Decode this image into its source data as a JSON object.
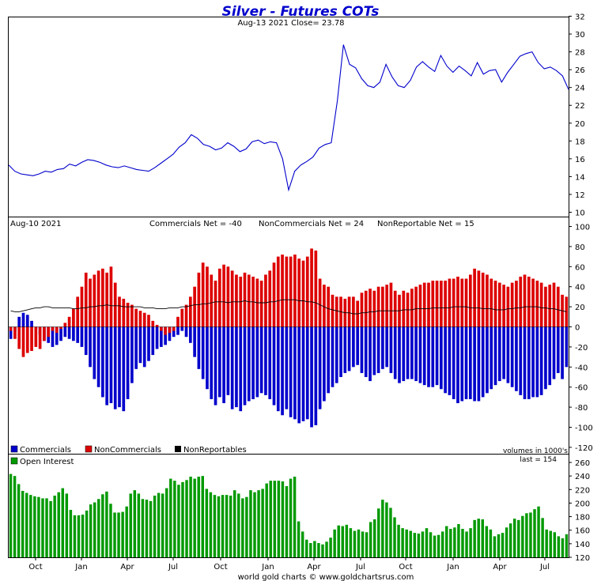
{
  "chart_data": [
    {
      "panel": "price",
      "type": "line",
      "title": "Silver - Futures COTs",
      "subtitle": "Aug-13  2021   Close= 23.78",
      "ylim": [
        10,
        32
      ],
      "yticks": [
        10,
        12,
        14,
        16,
        18,
        20,
        22,
        24,
        26,
        28,
        30,
        32
      ],
      "series": [
        {
          "name": "Silver price",
          "color": "#0000cc",
          "values": [
            15.3,
            14.6,
            14.3,
            14.2,
            14.1,
            14.3,
            14.6,
            14.5,
            14.8,
            14.9,
            15.4,
            15.2,
            15.6,
            15.9,
            15.8,
            15.6,
            15.3,
            15.1,
            15.0,
            15.2,
            15.0,
            14.8,
            14.7,
            14.6,
            15.0,
            15.5,
            16.0,
            16.5,
            17.3,
            17.8,
            18.7,
            18.3,
            17.6,
            17.4,
            17.0,
            17.2,
            17.8,
            17.4,
            16.8,
            17.1,
            17.9,
            18.1,
            17.7,
            17.9,
            17.8,
            16.0,
            12.5,
            14.6,
            15.3,
            15.7,
            16.2,
            17.2,
            17.6,
            17.8,
            22.5,
            28.8,
            26.6,
            26.2,
            25.0,
            24.2,
            24.0,
            24.6,
            26.6,
            25.2,
            24.2,
            24.0,
            24.8,
            26.3,
            26.9,
            26.3,
            25.8,
            27.6,
            26.4,
            25.7,
            26.4,
            25.9,
            25.3,
            26.8,
            25.5,
            25.9,
            26.0,
            24.6,
            25.7,
            26.6,
            27.5,
            27.8,
            28.0,
            26.8,
            26.1,
            26.3,
            25.9,
            25.3,
            23.78
          ]
        }
      ]
    },
    {
      "panel": "cot",
      "type": "bar",
      "date_label": "Aug-10  2021",
      "ylim": [
        -120,
        100
      ],
      "yticks": [
        -120,
        -100,
        -80,
        -60,
        -40,
        -20,
        0,
        20,
        40,
        60,
        80,
        100
      ],
      "series": [
        {
          "name": "Commercials",
          "color": "#0000cc",
          "values": [
            -12,
            -4,
            10,
            14,
            12,
            6,
            -2,
            -8,
            -14,
            -16,
            -20,
            -18,
            -14,
            -10,
            -12,
            -14,
            -16,
            -20,
            -28,
            -40,
            -52,
            -60,
            -70,
            -78,
            -76,
            -82,
            -80,
            -84,
            -72,
            -56,
            -42,
            -36,
            -40,
            -34,
            -28,
            -22,
            -20,
            -18,
            -14,
            -10,
            -8,
            -4,
            -10,
            -16,
            -30,
            -42,
            -52,
            -62,
            -72,
            -78,
            -70,
            -76,
            -68,
            -82,
            -80,
            -84,
            -78,
            -74,
            -72,
            -70,
            -66,
            -68,
            -72,
            -78,
            -84,
            -88,
            -82,
            -90,
            -92,
            -96,
            -94,
            -92,
            -100,
            -98,
            -82,
            -74,
            -66,
            -60,
            -56,
            -50,
            -46,
            -44,
            -40,
            -38,
            -46,
            -50,
            -54,
            -48,
            -46,
            -42,
            -40,
            -46,
            -52,
            -56,
            -54,
            -52,
            -52,
            -54,
            -56,
            -58,
            -60,
            -60,
            -58,
            -62,
            -66,
            -68,
            -72,
            -76,
            -74,
            -72,
            -72,
            -74,
            -74,
            -70,
            -66,
            -62,
            -58,
            -54,
            -52,
            -56,
            -60,
            -64,
            -68,
            -72,
            -72,
            -70,
            -70,
            -68,
            -62,
            -58,
            -52,
            -46,
            -52,
            -40
          ],
          "note": "values in thousands of contracts"
        },
        {
          "name": "NonCommercials",
          "color": "#dd0000",
          "values": [
            -4,
            -12,
            -22,
            -30,
            -26,
            -24,
            -20,
            -22,
            -14,
            -10,
            -4,
            -6,
            -2,
            4,
            10,
            18,
            30,
            40,
            54,
            48,
            52,
            56,
            58,
            54,
            60,
            44,
            30,
            28,
            24,
            22,
            18,
            16,
            14,
            12,
            6,
            2,
            -4,
            -8,
            -6,
            -4,
            10,
            18,
            22,
            30,
            40,
            54,
            64,
            60,
            52,
            46,
            58,
            62,
            60,
            56,
            52,
            50,
            54,
            52,
            50,
            48,
            46,
            52,
            56,
            64,
            70,
            72,
            70,
            70,
            72,
            68,
            66,
            70,
            78,
            76,
            48,
            42,
            40,
            32,
            30,
            30,
            28,
            30,
            30,
            26,
            34,
            36,
            38,
            36,
            40,
            40,
            42,
            44,
            36,
            32,
            36,
            34,
            38,
            40,
            42,
            44,
            44,
            46,
            46,
            46,
            46,
            48,
            48,
            50,
            48,
            48,
            52,
            58,
            56,
            54,
            52,
            48,
            46,
            44,
            42,
            40,
            44,
            46,
            50,
            52,
            50,
            48,
            46,
            44,
            40,
            42,
            44,
            40,
            32,
            30,
            24
          ],
          "note": "values in thousands of contracts"
        },
        {
          "name": "NonReportables",
          "color": "#000000",
          "values": [
            16,
            15,
            15,
            16,
            17,
            18,
            19,
            19,
            20,
            20,
            19,
            19,
            19,
            19,
            19,
            18,
            18,
            19,
            19,
            20,
            20,
            21,
            21,
            22,
            21,
            21,
            21,
            20,
            20,
            20,
            20,
            20,
            19,
            19,
            19,
            18,
            18,
            18,
            19,
            19,
            19,
            20,
            20,
            21,
            22,
            22,
            23,
            23,
            24,
            25,
            25,
            25,
            24,
            25,
            25,
            25,
            26,
            25,
            25,
            24,
            24,
            24,
            25,
            25,
            26,
            27,
            27,
            27,
            27,
            26,
            26,
            25,
            25,
            24,
            22,
            20,
            18,
            17,
            16,
            15,
            14,
            14,
            13,
            13,
            14,
            14,
            15,
            15,
            16,
            16,
            16,
            16,
            16,
            16,
            17,
            17,
            17,
            18,
            18,
            18,
            18,
            19,
            19,
            19,
            19,
            19,
            20,
            20,
            20,
            20,
            19,
            19,
            19,
            18,
            18,
            18,
            17,
            17,
            17,
            18,
            18,
            19,
            19,
            20,
            20,
            20,
            20,
            19,
            19,
            18,
            18,
            17,
            16,
            15
          ],
          "note": "values in thousands of contracts"
        }
      ],
      "header_stats": {
        "commercials": "Commercials Net = -40",
        "noncommercials": "NonCommercials Net = 24",
        "nonreportable": "NonReportable Net = 15"
      }
    },
    {
      "panel": "open_interest",
      "type": "bar",
      "ylim": [
        120,
        260
      ],
      "yticks": [
        120,
        140,
        160,
        180,
        200,
        220,
        240,
        260
      ],
      "volumes_note": "volumes in 1000's",
      "last_label": "last = 154",
      "series": [
        {
          "name": "Open Interest",
          "color": "#009900",
          "values": [
            243,
            240,
            228,
            218,
            215,
            212,
            210,
            209,
            207,
            207,
            203,
            211,
            216,
            222,
            214,
            190,
            182,
            182,
            183,
            189,
            198,
            201,
            206,
            213,
            217,
            199,
            186,
            186,
            187,
            195,
            214,
            219,
            214,
            206,
            205,
            203,
            211,
            215,
            214,
            222,
            236,
            233,
            227,
            231,
            234,
            239,
            236,
            239,
            240,
            221,
            216,
            212,
            210,
            212,
            212,
            211,
            219,
            214,
            207,
            209,
            219,
            216,
            219,
            221,
            229,
            233,
            233,
            233,
            232,
            225,
            236,
            239,
            173,
            158,
            146,
            141,
            144,
            141,
            139,
            143,
            149,
            161,
            167,
            166,
            168,
            163,
            159,
            161,
            158,
            157,
            172,
            176,
            192,
            205,
            201,
            193,
            179,
            168,
            163,
            161,
            159,
            156,
            155,
            158,
            163,
            157,
            152,
            153,
            158,
            166,
            162,
            164,
            169,
            162,
            158,
            163,
            175,
            177,
            176,
            166,
            161,
            151,
            154,
            156,
            164,
            170,
            177,
            175,
            181,
            185,
            186,
            191,
            195,
            178,
            161,
            159,
            157,
            151,
            148,
            154
          ],
          "note": "values in thousands of contracts"
        }
      ],
      "xticks": [
        "Oct",
        "Jan",
        "Apr",
        "Jul",
        "Oct",
        "Jan",
        "Apr",
        "Jul",
        "Oct",
        "Jan",
        "Apr",
        "Jul"
      ]
    }
  ],
  "legend": {
    "commercials": "Commercials",
    "noncommercials": "NonCommercials",
    "nonreportables": "NonReportables",
    "open_interest": "Open Interest"
  },
  "footer": "world gold charts © www.goldchartsrus.com"
}
